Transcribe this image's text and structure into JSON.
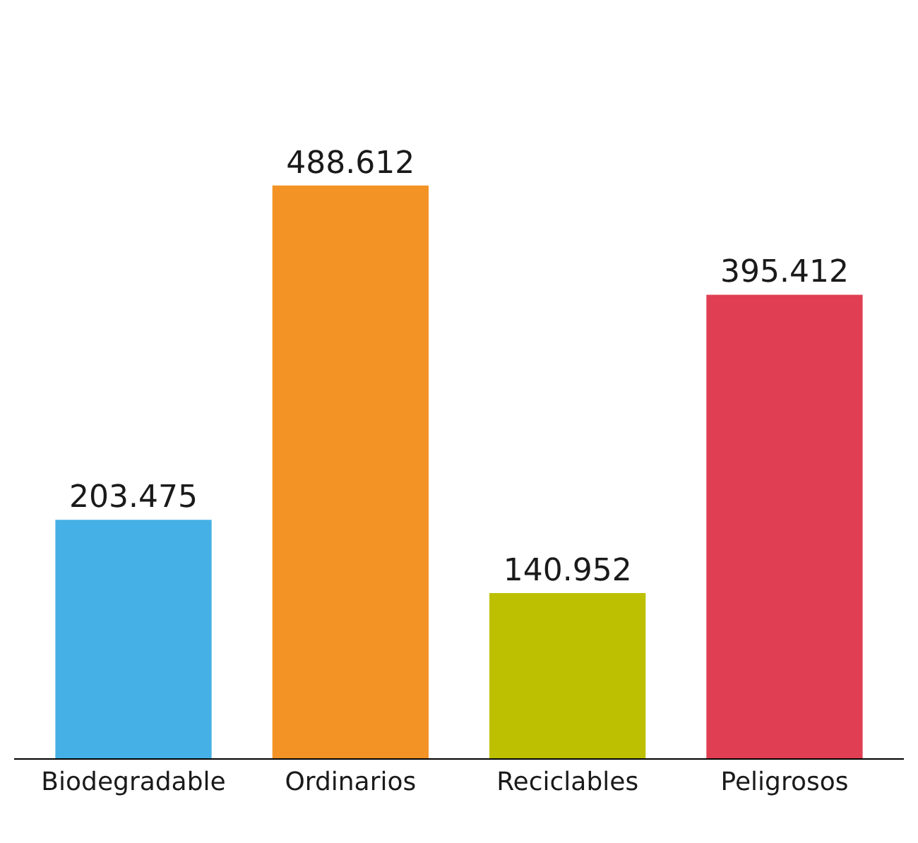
{
  "chart_data": {
    "type": "bar",
    "categories": [
      "Biodegradable",
      "Ordinarios",
      "Reciclables",
      "Peligrosos"
    ],
    "values": [
      203.475,
      488.612,
      140.952,
      395.412
    ],
    "colors": [
      "#45b0e5",
      "#f39325",
      "#bdc000",
      "#e03e52"
    ],
    "data_labels": true,
    "tick_labels": "x",
    "legend": false
  }
}
